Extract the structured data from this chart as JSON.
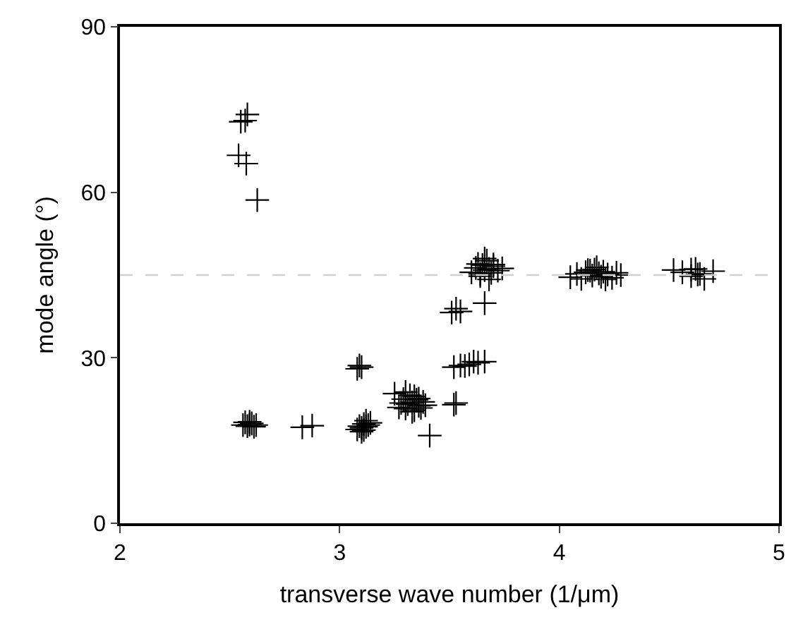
{
  "chart_data": {
    "type": "scatter",
    "xlabel": "transverse wave number (1/μm)",
    "ylabel": "mode angle (°)",
    "xlim": [
      2,
      5
    ],
    "xticks": [
      2,
      3,
      4,
      5
    ],
    "ylim": [
      0,
      90
    ],
    "yticks": [
      0,
      30,
      60,
      90
    ],
    "marker": "cross",
    "ref_lines": [
      {
        "axis": "y",
        "value": 45,
        "color": "#d0d0d0",
        "line_style": "dashed"
      }
    ],
    "series": [
      {
        "color": "#000000",
        "x": [
          2.55,
          2.57,
          2.58,
          2.54,
          2.575,
          2.625,
          2.56,
          2.57,
          2.58,
          2.59,
          2.6,
          2.61,
          2.62,
          2.59,
          2.83,
          2.875,
          3.08,
          3.09,
          3.1,
          3.08,
          3.09,
          3.1,
          3.11,
          3.11,
          3.12,
          3.13,
          3.14,
          3.12,
          3.1,
          3.25,
          3.27,
          3.29,
          3.3,
          3.31,
          3.32,
          3.33,
          3.34,
          3.35,
          3.36,
          3.37,
          3.38,
          3.3,
          3.34,
          3.28,
          3.33,
          3.36,
          3.39,
          3.41,
          3.52,
          3.53,
          3.52,
          3.55,
          3.57,
          3.59,
          3.61,
          3.63,
          3.66,
          3.51,
          3.53,
          3.55,
          3.66,
          3.6,
          3.62,
          3.63,
          3.64,
          3.65,
          3.66,
          3.67,
          3.68,
          3.69,
          3.7,
          3.72,
          3.74,
          3.64,
          3.68,
          3.66,
          3.7,
          4.05,
          4.08,
          4.1,
          4.12,
          4.14,
          4.15,
          4.16,
          4.18,
          4.19,
          4.2,
          4.22,
          4.24,
          4.26,
          4.28,
          4.17,
          4.13,
          4.21,
          4.52,
          4.56,
          4.6,
          4.62,
          4.64,
          4.66,
          4.7,
          4.6,
          4.63
        ],
        "values": [
          72.8,
          73.0,
          74.1,
          66.7,
          65.2,
          58.6,
          17.8,
          18.3,
          17.6,
          17.9,
          18.1,
          17.5,
          17.8,
          18.4,
          17.4,
          17.7,
          28.0,
          28.6,
          28.3,
          17.0,
          17.6,
          17.3,
          18.0,
          16.9,
          17.5,
          17.8,
          18.2,
          18.6,
          16.6,
          23.5,
          21.0,
          22.5,
          20.8,
          21.6,
          23.2,
          21.9,
          20.5,
          22.4,
          21.3,
          20.9,
          22.0,
          23.8,
          23.0,
          21.8,
          20.2,
          22.6,
          21.4,
          15.9,
          21.5,
          21.8,
          28.3,
          28.6,
          28.5,
          28.8,
          29.3,
          29.1,
          29.3,
          38.2,
          38.9,
          38.4,
          39.9,
          45.5,
          46.3,
          47.0,
          45.2,
          46.8,
          45.9,
          47.6,
          46.1,
          45.4,
          46.6,
          45.8,
          46.2,
          44.8,
          44.2,
          48.0,
          46.9,
          44.6,
          45.2,
          44.3,
          45.5,
          45.8,
          44.9,
          46.0,
          45.3,
          44.7,
          45.6,
          45.1,
          44.5,
          45.4,
          45.0,
          46.4,
          45.9,
          44.2,
          45.9,
          45.5,
          44.8,
          46.1,
          45.2,
          44.3,
          45.7,
          46.0,
          45.1
        ]
      }
    ]
  }
}
